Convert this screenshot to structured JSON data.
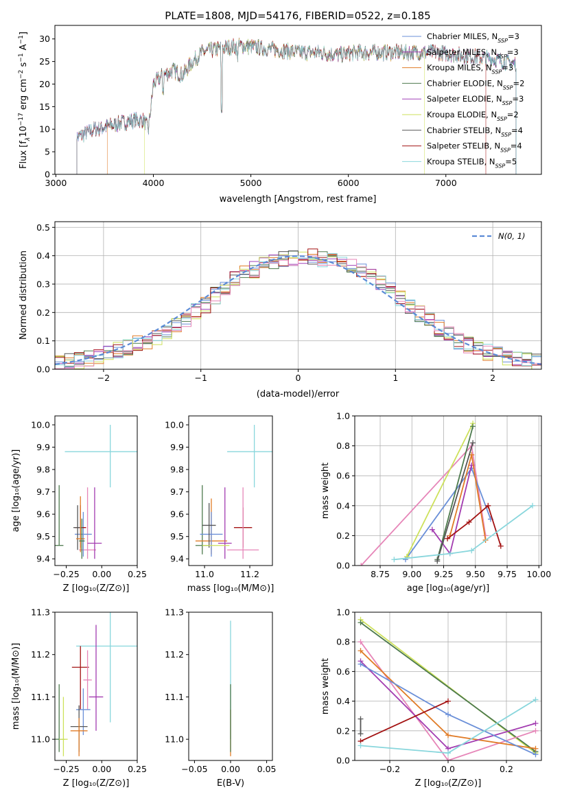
{
  "colors": {
    "chabrier_miles": "#6a8fd8",
    "salpeter_miles": "#a23bb0",
    "kroupa_miles": "#e07b26",
    "chabrier_elodie": "#4d7a4d",
    "salpeter_elodie": "#a040b8",
    "kroupa_elodie": "#cde15a",
    "chabrier_stelib": "#555555",
    "salpeter_stelib": "#a31212",
    "kroupa_stelib": "#88d6dc",
    "pink": "#e685b8",
    "normal_curve": "#5b8ad6"
  },
  "chart_data": [
    {
      "id": "spectrum",
      "type": "line",
      "title": "PLATE=1808, MJD=54176, FIBERID=0522, z=0.185",
      "xlabel": "wavelength [Angstrom, rest frame]",
      "ylabel_parts": [
        "Flux [f",
        "λ",
        "10",
        "−17",
        " erg cm",
        "−2",
        " s",
        "−1",
        " A",
        "−1",
        "]"
      ],
      "xlim": [
        2990,
        7980
      ],
      "ylim": [
        0,
        33
      ],
      "xticks": [
        "3000",
        "4000",
        "5000",
        "6000",
        "7000"
      ],
      "yticks": [
        "0",
        "5",
        "10",
        "15",
        "20",
        "25",
        "30"
      ],
      "grid": false,
      "legend_position": "top-right",
      "continuum": {
        "x": [
          3200,
          3400,
          3600,
          3800,
          3900,
          3950,
          4000,
          4100,
          4200,
          4300,
          4400,
          4500,
          4700,
          4900,
          5100,
          5300,
          5500,
          5700,
          5900,
          6100,
          6300,
          6500,
          6700,
          6900,
          7100,
          7300,
          7500,
          7700
        ],
        "y": [
          8,
          10,
          11,
          12,
          12,
          10,
          20,
          22,
          23,
          22,
          25,
          27,
          28,
          28.5,
          28,
          27.5,
          27,
          27,
          26.5,
          27,
          27,
          27,
          27,
          27,
          26.5,
          26,
          25.5,
          24.5
        ]
      },
      "series": [
        {
          "name": "Chabrier MILES",
          "nssp": "3",
          "color_key": "chabrier_miles",
          "xstart": 3215,
          "xend": 7720
        },
        {
          "name": "Salpeter MILES",
          "nssp": "3",
          "color_key": "salpeter_miles",
          "xstart": 3215,
          "xend": 7720
        },
        {
          "name": "Kroupa MILES",
          "nssp": "3",
          "color_key": "kroupa_miles",
          "xstart": 3530,
          "xend": 7720
        },
        {
          "name": "Chabrier ELODIE",
          "nssp": "2",
          "color_key": "chabrier_elodie",
          "xstart": 3215,
          "xend": 7720
        },
        {
          "name": "Salpeter ELODIE",
          "nssp": "3",
          "color_key": "salpeter_elodie",
          "xstart": 3215,
          "xend": 7720
        },
        {
          "name": "Kroupa ELODIE",
          "nssp": "2",
          "color_key": "kroupa_elodie",
          "xstart": 3910,
          "xend": 6780
        },
        {
          "name": "Chabrier STELIB",
          "nssp": "4",
          "color_key": "chabrier_stelib",
          "xstart": 3215,
          "xend": 7720
        },
        {
          "name": "Salpeter STELIB",
          "nssp": "4",
          "color_key": "salpeter_stelib",
          "xstart": 3215,
          "xend": 7410
        },
        {
          "name": "Kroupa STELIB",
          "nssp": "5",
          "color_key": "kroupa_stelib",
          "xstart": 3215,
          "xend": 7720
        }
      ]
    },
    {
      "id": "residuals",
      "type": "line",
      "xlabel": "(data-model)/error",
      "ylabel": "Normed distribution",
      "xlim": [
        -2.5,
        2.5
      ],
      "ylim": [
        0,
        0.52
      ],
      "xticks": [
        "−2",
        "−1",
        "0",
        "1",
        "2"
      ],
      "yticks": [
        "0.0",
        "0.1",
        "0.2",
        "0.3",
        "0.4",
        "0.5"
      ],
      "grid": true,
      "legend_position": "top-right",
      "legend_label": "N(0, 1)",
      "bin_width": 0.1,
      "envelope": [
        0.02,
        0.025,
        0.03,
        0.035,
        0.05,
        0.06,
        0.065,
        0.075,
        0.09,
        0.1,
        0.115,
        0.13,
        0.155,
        0.18,
        0.205,
        0.225,
        0.26,
        0.29,
        0.315,
        0.34,
        0.35,
        0.365,
        0.38,
        0.385,
        0.39,
        0.4,
        0.395,
        0.39,
        0.385,
        0.38,
        0.365,
        0.345,
        0.325,
        0.305,
        0.28,
        0.25,
        0.22,
        0.195,
        0.17,
        0.145,
        0.12,
        0.1,
        0.085,
        0.07,
        0.06,
        0.05,
        0.04,
        0.035,
        0.03,
        0.025
      ]
    },
    {
      "id": "age_vs_Z",
      "type": "scatter",
      "xlabel": "Z [log₁₀(Z/Z⊙)]",
      "ylabel": "age  [log₁₀(age/yr)]",
      "xlim": [
        -0.33,
        0.25
      ],
      "ylim": [
        9.37,
        10.04
      ],
      "xticks": [
        [
          "−0.25",
          -0.25
        ],
        [
          "0.00",
          0
        ],
        [
          "0.25",
          0.25
        ]
      ],
      "yticks": [
        [
          "9.4",
          9.4
        ],
        [
          "9.5",
          9.5
        ],
        [
          "9.6",
          9.6
        ],
        [
          "9.7",
          9.7
        ],
        [
          "9.8",
          9.8
        ],
        [
          "9.9",
          9.9
        ],
        [
          "10.0",
          10.0
        ]
      ],
      "grid": false,
      "points": [
        {
          "color_key": "kroupa_stelib",
          "x": 0.06,
          "y": 9.88,
          "xerr": 0.32,
          "yerr": [
            0.16,
            0.12
          ]
        },
        {
          "color_key": "chabrier_elodie",
          "x": -0.3,
          "y": 9.46,
          "xerr": 0.0,
          "yerr": [
            0.0,
            0.27
          ]
        },
        {
          "color_key": "chabrier_elodie",
          "x": -0.3,
          "y": 9.46,
          "xerr": 0.03,
          "yerr": [
            0,
            0
          ]
        },
        {
          "color_key": "pink",
          "x": -0.1,
          "y": 9.44,
          "xerr": 0.06,
          "yerr": [
            0.04,
            0.28
          ]
        },
        {
          "color_key": "salpeter_miles",
          "x": -0.05,
          "y": 9.47,
          "xerr": 0.05,
          "yerr": [
            0.07,
            0.25
          ]
        },
        {
          "color_key": "chabrier_miles",
          "x": -0.13,
          "y": 9.51,
          "xerr": 0.06,
          "yerr": [
            0.1,
            0.1
          ]
        },
        {
          "color_key": "salpeter_stelib",
          "x": -0.15,
          "y": 9.54,
          "xerr": 0.04,
          "yerr": [
            0.09,
            0.1
          ]
        },
        {
          "color_key": "chabrier_stelib",
          "x": -0.17,
          "y": 9.54,
          "xerr": 0.03,
          "yerr": [
            0.1,
            0.1
          ]
        },
        {
          "color_key": "kroupa_miles",
          "x": -0.15,
          "y": 9.49,
          "xerr": 0.03,
          "yerr": [
            0.06,
            0.19
          ]
        },
        {
          "color_key": "chabrier_elodie",
          "x": -0.14,
          "y": 9.48,
          "xerr": 0.02,
          "yerr": [
            0.08,
            0.1
          ]
        }
      ]
    },
    {
      "id": "age_vs_mass",
      "type": "scatter",
      "xlabel": "mass [log₁₀(M/M⊙)]",
      "xlim": [
        10.93,
        11.3
      ],
      "ylim": [
        9.37,
        10.04
      ],
      "xticks": [
        [
          "11.0",
          11.0
        ],
        [
          "11.2",
          11.2
        ]
      ],
      "yticks": [
        [
          "9.4",
          9.4
        ],
        [
          "9.5",
          9.5
        ],
        [
          "9.6",
          9.6
        ],
        [
          "9.7",
          9.7
        ],
        [
          "9.8",
          9.8
        ],
        [
          "9.9",
          9.9
        ],
        [
          "10.0",
          10.0
        ]
      ],
      "grid": false,
      "points": [
        {
          "color_key": "kroupa_stelib",
          "x": 11.22,
          "y": 9.88,
          "xerr": 0.12,
          "yerr": [
            0.16,
            0.12
          ]
        },
        {
          "color_key": "chabrier_elodie",
          "x": 10.99,
          "y": 9.46,
          "xerr": 0.03,
          "yerr": [
            0.04,
            0.27
          ]
        },
        {
          "color_key": "kroupa_miles",
          "x": 11.03,
          "y": 9.48,
          "xerr": 0.07,
          "yerr": [
            0.06,
            0.19
          ]
        },
        {
          "color_key": "salpeter_miles",
          "x": 11.09,
          "y": 9.47,
          "xerr": 0.03,
          "yerr": [
            0.07,
            0.25
          ]
        },
        {
          "color_key": "chabrier_miles",
          "x": 11.03,
          "y": 9.51,
          "xerr": 0.05,
          "yerr": [
            0.1,
            0.1
          ]
        },
        {
          "color_key": "chabrier_stelib",
          "x": 11.02,
          "y": 9.55,
          "xerr": 0.03,
          "yerr": [
            0.1,
            0.1
          ]
        },
        {
          "color_key": "salpeter_stelib",
          "x": 11.17,
          "y": 9.54,
          "xerr": 0.04,
          "yerr": [
            0.09,
            0.09
          ]
        },
        {
          "color_key": "pink",
          "x": 11.17,
          "y": 9.44,
          "xerr": 0.07,
          "yerr": [
            0.04,
            0.28
          ]
        },
        {
          "color_key": "kroupa_elodie",
          "x": 11.05,
          "y": 9.46,
          "xerr": 0.06,
          "yerr": [
            0,
            0
          ]
        }
      ]
    },
    {
      "id": "weight_vs_age",
      "type": "line",
      "xlabel": "age  [log₁₀(age/yr)]",
      "ylabel": "mass weight",
      "xlim": [
        8.55,
        10.02
      ],
      "ylim": [
        0,
        1
      ],
      "xticks": [
        [
          "8.75",
          8.75
        ],
        [
          "9.00",
          9.0
        ],
        [
          "9.25",
          9.25
        ],
        [
          "9.50",
          9.5
        ],
        [
          "9.75",
          9.75
        ],
        [
          "10.00",
          10.0
        ]
      ],
      "yticks": [
        [
          "0.0",
          0
        ],
        [
          "0.2",
          0.2
        ],
        [
          "0.4",
          0.4
        ],
        [
          "0.6",
          0.6
        ],
        [
          "0.8",
          0.8
        ],
        [
          "1.0",
          1.0
        ]
      ],
      "grid": true,
      "series": [
        {
          "color_key": "pink",
          "x": [
            8.6,
            9.47,
            9.58
          ],
          "y": [
            0.0,
            0.8,
            0.2
          ]
        },
        {
          "color_key": "chabrier_miles",
          "x": [
            8.95,
            9.47,
            9.62
          ],
          "y": [
            0.04,
            0.65,
            0.31
          ]
        },
        {
          "color_key": "kroupa_elodie",
          "x": [
            8.96,
            9.48
          ],
          "y": [
            0.06,
            0.95
          ]
        },
        {
          "color_key": "chabrier_elodie",
          "x": [
            9.2,
            9.48
          ],
          "y": [
            0.04,
            0.93
          ]
        },
        {
          "color_key": "salpeter_miles",
          "x": [
            9.16,
            9.3,
            9.47
          ],
          "y": [
            0.24,
            0.08,
            0.67
          ]
        },
        {
          "color_key": "kroupa_miles",
          "x": [
            9.3,
            9.47,
            9.58
          ],
          "y": [
            0.2,
            0.74,
            0.17
          ]
        },
        {
          "color_key": "chabrier_stelib",
          "x": [
            9.2,
            9.48
          ],
          "y": [
            0.03,
            0.82
          ]
        },
        {
          "color_key": "salpeter_stelib",
          "x": [
            9.28,
            9.45,
            9.6,
            9.7
          ],
          "y": [
            0.18,
            0.29,
            0.4,
            0.13
          ]
        },
        {
          "color_key": "kroupa_stelib",
          "x": [
            8.86,
            9.3,
            9.47,
            9.95
          ],
          "y": [
            0.04,
            0.08,
            0.1,
            0.4
          ]
        }
      ]
    },
    {
      "id": "mass_vs_Z",
      "type": "scatter",
      "xlabel": "Z [log₁₀(Z/Z⊙)]",
      "ylabel": "mass [log₁₀(M/M⊙)]",
      "xlim": [
        -0.33,
        0.25
      ],
      "ylim": [
        10.95,
        11.3
      ],
      "xticks": [
        [
          "−0.25",
          -0.25
        ],
        [
          "0.00",
          0
        ],
        [
          "0.25",
          0.25
        ]
      ],
      "yticks": [
        [
          "11.0",
          11.0
        ],
        [
          "11.1",
          11.1
        ],
        [
          "11.2",
          11.2
        ],
        [
          "11.3",
          11.3
        ]
      ],
      "grid": false,
      "points": [
        {
          "color_key": "kroupa_stelib",
          "x": 0.06,
          "y": 11.22,
          "xerr": 0.24,
          "yerr": [
            0.18,
            0.08
          ]
        },
        {
          "color_key": "salpeter_stelib",
          "x": -0.15,
          "y": 11.17,
          "xerr": 0.06,
          "yerr": [
            0.1,
            0.05
          ]
        },
        {
          "color_key": "salpeter_miles",
          "x": -0.04,
          "y": 11.1,
          "xerr": 0.05,
          "yerr": [
            0.08,
            0.17
          ]
        },
        {
          "color_key": "pink",
          "x": -0.1,
          "y": 11.14,
          "xerr": 0.03,
          "yerr": [
            0.07,
            0.07
          ]
        },
        {
          "color_key": "chabrier_miles",
          "x": -0.13,
          "y": 11.07,
          "xerr": 0.05,
          "yerr": [
            0.06,
            0.05
          ]
        },
        {
          "color_key": "chabrier_stelib",
          "x": -0.16,
          "y": 11.03,
          "xerr": 0.06,
          "yerr": [
            0.06,
            0.05
          ]
        },
        {
          "color_key": "kroupa_miles",
          "x": -0.16,
          "y": 11.02,
          "xerr": 0.06,
          "yerr": [
            0.06,
            0.03
          ]
        },
        {
          "color_key": "chabrier_elodie",
          "x": -0.3,
          "y": 11.0,
          "xerr": 0.04,
          "yerr": [
            0.03,
            0.13
          ]
        },
        {
          "color_key": "kroupa_elodie",
          "x": -0.27,
          "y": 11.0,
          "xerr": 0.03,
          "yerr": [
            0.04,
            0.1
          ]
        }
      ]
    },
    {
      "id": "mass_vs_ebv",
      "type": "scatter",
      "xlabel": "E(B-V)",
      "xlim": [
        -0.058,
        0.058
      ],
      "ylim": [
        10.95,
        11.3
      ],
      "xticks": [
        [
          "−0.05",
          -0.05
        ],
        [
          "0.00",
          0
        ],
        [
          "0.05",
          0.05
        ]
      ],
      "yticks": [
        [
          "11.0",
          11.0
        ],
        [
          "11.1",
          11.1
        ],
        [
          "11.2",
          11.2
        ],
        [
          "11.3",
          11.3
        ]
      ],
      "grid": false,
      "points": [
        {
          "color_key": "kroupa_stelib",
          "x": 0,
          "y": 11.13,
          "xerr": 0,
          "yerr": [
            0.13,
            0.15
          ]
        },
        {
          "color_key": "kroupa_miles",
          "x": 0,
          "y": 11.02,
          "xerr": 0,
          "yerr": [
            0.06,
            0.05
          ]
        },
        {
          "color_key": "chabrier_elodie",
          "x": 0,
          "y": 11.0,
          "xerr": 0,
          "yerr": [
            0.03,
            0.13
          ]
        }
      ]
    },
    {
      "id": "weight_vs_Z",
      "type": "line",
      "xlabel": "Z [log₁₀(Z/Z⊙)]",
      "ylabel": "mass weight",
      "xlim": [
        -0.32,
        0.32
      ],
      "ylim": [
        0,
        1
      ],
      "xticks": [
        [
          "−0.2",
          -0.2
        ],
        [
          "0.0",
          0.0
        ],
        [
          "0.2",
          0.2
        ]
      ],
      "yticks": [
        [
          "0.0",
          0
        ],
        [
          "0.2",
          0.2
        ],
        [
          "0.4",
          0.4
        ],
        [
          "0.6",
          0.6
        ],
        [
          "0.8",
          0.8
        ],
        [
          "1.0",
          1.0
        ]
      ],
      "grid": true,
      "series": [
        {
          "color_key": "kroupa_elodie",
          "x": [
            -0.3,
            0.3
          ],
          "y": [
            0.95,
            0.05
          ]
        },
        {
          "color_key": "chabrier_elodie",
          "x": [
            -0.3,
            0.3
          ],
          "y": [
            0.93,
            0.06
          ]
        },
        {
          "color_key": "pink",
          "x": [
            -0.3,
            0.0,
            0.3
          ],
          "y": [
            0.8,
            0.0,
            0.2
          ]
        },
        {
          "color_key": "kroupa_miles",
          "x": [
            -0.3,
            0.0,
            0.3
          ],
          "y": [
            0.74,
            0.17,
            0.08
          ]
        },
        {
          "color_key": "salpeter_miles",
          "x": [
            -0.3,
            0.0,
            0.3
          ],
          "y": [
            0.67,
            0.08,
            0.25
          ]
        },
        {
          "color_key": "chabrier_miles",
          "x": [
            -0.3,
            0.0,
            0.3
          ],
          "y": [
            0.65,
            0.31,
            0.04
          ]
        },
        {
          "color_key": "salpeter_stelib",
          "x": [
            -0.3,
            0.0
          ],
          "y": [
            0.13,
            0.4
          ]
        },
        {
          "color_key": "kroupa_stelib",
          "x": [
            -0.3,
            0.0,
            0.3
          ],
          "y": [
            0.1,
            0.05,
            0.41
          ]
        },
        {
          "color_key": "chabrier_stelib",
          "x": [
            -0.3,
            -0.3
          ],
          "y": [
            0.28,
            0.18
          ]
        }
      ]
    }
  ]
}
